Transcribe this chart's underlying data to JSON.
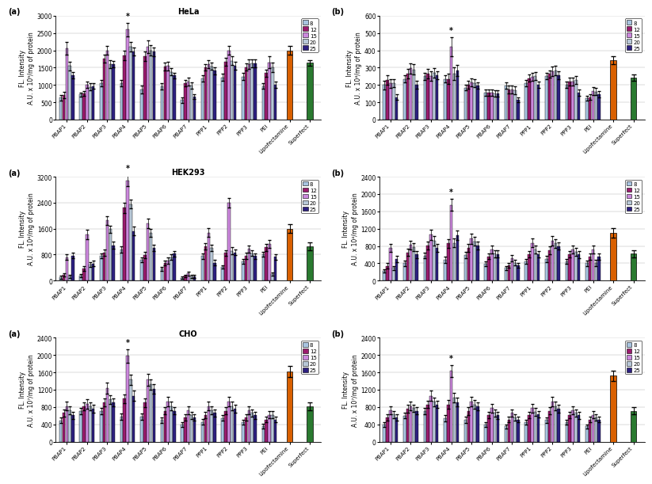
{
  "categories": [
    "PBAP1",
    "PBAP2",
    "PBAP3",
    "PBAP4",
    "PBAP5",
    "PBAP6",
    "PBAP7",
    "PPP1",
    "PPP2",
    "PPP3",
    "PEI",
    "Lipofectamine",
    "Superfect"
  ],
  "np_ratios": [
    8,
    12,
    15,
    20,
    25
  ],
  "bar_colors": [
    "#a8c4e0",
    "#9b1b6e",
    "#cc88dd",
    "#b8c8d8",
    "#2d2080"
  ],
  "lipofectamine_color": "#d96000",
  "superfect_color": "#2a7a30",
  "panels": {
    "HeLa_a": {
      "title": "HeLa",
      "subtitle": "(a)",
      "ylabel": "FL. Intensity\nA.U. x 10⁹/mg of protein",
      "ylim": [
        0,
        3000
      ],
      "yticks": [
        0,
        500,
        1000,
        1500,
        2000,
        2500,
        3000
      ],
      "star_cat": 3,
      "star_ratio": 2,
      "data": [
        [
          630,
          700,
          2060,
          1550,
          1280
        ],
        [
          720,
          760,
          1000,
          940,
          970
        ],
        [
          1050,
          1760,
          2000,
          1600,
          1600
        ],
        [
          1050,
          1850,
          2600,
          2100,
          1960
        ],
        [
          870,
          1830,
          2100,
          2000,
          1960
        ],
        [
          960,
          1530,
          1550,
          1380,
          1270
        ],
        [
          560,
          1060,
          1100,
          980,
          660
        ],
        [
          1180,
          1510,
          1600,
          1540,
          1410
        ],
        [
          1220,
          1670,
          2000,
          1700,
          1560
        ],
        [
          1240,
          1520,
          1600,
          1620,
          1620
        ],
        [
          960,
          1340,
          1650,
          1510,
          1000
        ],
        [
          2000,
          0,
          0,
          0,
          0
        ],
        [
          1640,
          0,
          0,
          0,
          0
        ]
      ],
      "errors": [
        [
          80,
          90,
          180,
          130,
          100
        ],
        [
          60,
          70,
          90,
          100,
          80
        ],
        [
          90,
          120,
          130,
          110,
          90
        ],
        [
          100,
          130,
          200,
          140,
          110
        ],
        [
          110,
          130,
          190,
          140,
          130
        ],
        [
          90,
          110,
          130,
          110,
          90
        ],
        [
          70,
          90,
          120,
          90,
          70
        ],
        [
          90,
          100,
          120,
          110,
          100
        ],
        [
          100,
          120,
          130,
          130,
          110
        ],
        [
          100,
          110,
          130,
          120,
          110
        ],
        [
          80,
          100,
          170,
          130,
          90
        ],
        [
          120,
          0,
          0,
          0,
          0
        ],
        [
          80,
          0,
          0,
          0,
          0
        ]
      ]
    },
    "HeLa_b": {
      "title": "",
      "subtitle": "(b)",
      "ylabel": "FL. Intensity\nA.U. x 10⁴/mg of protein",
      "ylim": [
        0,
        600
      ],
      "yticks": [
        0,
        100,
        200,
        300,
        400,
        500,
        600
      ],
      "star_cat": 3,
      "star_ratio": 2,
      "data": [
        [
          200,
          230,
          210,
          210,
          130
        ],
        [
          235,
          265,
          295,
          290,
          200
        ],
        [
          250,
          265,
          250,
          270,
          255
        ],
        [
          235,
          235,
          420,
          265,
          285
        ],
        [
          185,
          200,
          215,
          210,
          195
        ],
        [
          155,
          155,
          155,
          150,
          150
        ],
        [
          195,
          175,
          175,
          170,
          115
        ],
        [
          210,
          240,
          245,
          250,
          200
        ],
        [
          252,
          263,
          280,
          285,
          255
        ],
        [
          200,
          220,
          220,
          228,
          155
        ],
        [
          125,
          130,
          165,
          162,
          148
        ],
        [
          342,
          0,
          0,
          0,
          0
        ],
        [
          243,
          0,
          0,
          0,
          0
        ]
      ],
      "errors": [
        [
          25,
          28,
          25,
          22,
          18
        ],
        [
          22,
          28,
          30,
          28,
          22
        ],
        [
          22,
          27,
          28,
          28,
          22
        ],
        [
          22,
          28,
          55,
          35,
          32
        ],
        [
          18,
          22,
          23,
          22,
          18
        ],
        [
          18,
          18,
          18,
          18,
          18
        ],
        [
          18,
          22,
          22,
          22,
          14
        ],
        [
          18,
          22,
          23,
          23,
          18
        ],
        [
          18,
          22,
          28,
          28,
          22
        ],
        [
          18,
          22,
          23,
          23,
          18
        ],
        [
          14,
          18,
          22,
          22,
          18
        ],
        [
          22,
          0,
          0,
          0,
          0
        ],
        [
          18,
          0,
          0,
          0,
          0
        ]
      ]
    },
    "HEK293_a": {
      "title": "HEK293",
      "subtitle": "(a)",
      "ylabel": "FL. Intensity\nA.U. x 10⁴/mg of protein",
      "ylim": [
        0,
        3200
      ],
      "yticks": [
        0,
        800,
        1600,
        2400,
        3200
      ],
      "star_cat": 3,
      "star_ratio": 2,
      "data": [
        [
          100,
          180,
          720,
          130,
          770
        ],
        [
          150,
          370,
          1420,
          490,
          520
        ],
        [
          760,
          850,
          1850,
          1580,
          1090
        ],
        [
          960,
          2240,
          3080,
          2360,
          1530
        ],
        [
          640,
          790,
          1760,
          1470,
          1010
        ],
        [
          360,
          545,
          620,
          720,
          830
        ],
        [
          90,
          140,
          220,
          120,
          130
        ],
        [
          750,
          1060,
          1480,
          1000,
          550
        ],
        [
          420,
          850,
          2400,
          920,
          870
        ],
        [
          600,
          760,
          970,
          840,
          750
        ],
        [
          810,
          1020,
          1120,
          200,
          730
        ],
        [
          1600,
          0,
          0,
          0,
          0
        ],
        [
          1050,
          0,
          0,
          0,
          0
        ]
      ],
      "errors": [
        [
          40,
          50,
          90,
          50,
          90
        ],
        [
          50,
          70,
          140,
          80,
          85
        ],
        [
          80,
          100,
          140,
          115,
          100
        ],
        [
          100,
          150,
          160,
          145,
          130
        ],
        [
          80,
          100,
          140,
          115,
          100
        ],
        [
          55,
          75,
          90,
          90,
          90
        ],
        [
          35,
          45,
          60,
          45,
          40
        ],
        [
          80,
          100,
          125,
          100,
          80
        ],
        [
          60,
          95,
          145,
          100,
          95
        ],
        [
          70,
          90,
          105,
          90,
          80
        ],
        [
          80,
          100,
          120,
          55,
          80
        ],
        [
          130,
          0,
          0,
          0,
          0
        ],
        [
          120,
          0,
          0,
          0,
          0
        ]
      ]
    },
    "HEK293_b": {
      "title": "",
      "subtitle": "(b)",
      "ylabel": "FL. Intensity\nA.U. x 10⁴/mg of protein",
      "ylim": [
        0,
        2400
      ],
      "yticks": [
        0,
        400,
        800,
        1200,
        1600,
        2000,
        2400
      ],
      "star_cat": 3,
      "star_ratio": 2,
      "data": [
        [
          220,
          340,
          750,
          290,
          500
        ],
        [
          400,
          650,
          820,
          770,
          600
        ],
        [
          580,
          810,
          1060,
          920,
          760
        ],
        [
          480,
          860,
          1750,
          870,
          1050
        ],
        [
          590,
          760,
          970,
          910,
          810
        ],
        [
          390,
          560,
          720,
          620,
          610
        ],
        [
          290,
          350,
          510,
          410,
          355
        ],
        [
          445,
          610,
          870,
          710,
          610
        ],
        [
          500,
          700,
          920,
          860,
          800
        ],
        [
          445,
          610,
          720,
          660,
          600
        ],
        [
          400,
          560,
          720,
          410,
          560
        ],
        [
          1100,
          0,
          0,
          0,
          0
        ],
        [
          620,
          0,
          0,
          0,
          0
        ]
      ],
      "errors": [
        [
          38,
          58,
          95,
          50,
          70
        ],
        [
          58,
          78,
          105,
          92,
          80
        ],
        [
          68,
          88,
          115,
          102,
          90
        ],
        [
          78,
          98,
          135,
          102,
          112
        ],
        [
          78,
          88,
          115,
          102,
          90
        ],
        [
          58,
          68,
          95,
          82,
          82
        ],
        [
          48,
          58,
          75,
          62,
          55
        ],
        [
          58,
          78,
          105,
          92,
          80
        ],
        [
          68,
          88,
          115,
          102,
          90
        ],
        [
          58,
          78,
          95,
          88,
          80
        ],
        [
          58,
          73,
          95,
          70,
          75
        ],
        [
          105,
          0,
          0,
          0,
          0
        ],
        [
          80,
          0,
          0,
          0,
          0
        ]
      ]
    },
    "CHO_a": {
      "title": "CHO",
      "subtitle": "(a)",
      "ylabel": "FL. Intensity\nA.U. x 10⁷/mg of protein",
      "ylim": [
        0,
        2400
      ],
      "yticks": [
        0,
        400,
        800,
        1200,
        1600,
        2000,
        2400
      ],
      "star_cat": 3,
      "star_ratio": 2,
      "data": [
        [
          490,
          660,
          820,
          720,
          610
        ],
        [
          700,
          810,
          870,
          820,
          760
        ],
        [
          700,
          910,
          1230,
          970,
          910
        ],
        [
          580,
          990,
          1980,
          1430,
          1060
        ],
        [
          580,
          900,
          1430,
          1320,
          1220
        ],
        [
          500,
          710,
          920,
          820,
          710
        ],
        [
          395,
          555,
          720,
          610,
          560
        ],
        [
          455,
          610,
          820,
          720,
          660
        ],
        [
          540,
          710,
          920,
          820,
          760
        ],
        [
          450,
          560,
          720,
          660,
          610
        ],
        [
          350,
          510,
          620,
          620,
          510
        ],
        [
          1620,
          0,
          0,
          0,
          0
        ],
        [
          810,
          0,
          0,
          0,
          0
        ]
      ],
      "errors": [
        [
          60,
          80,
          105,
          90,
          80
        ],
        [
          70,
          88,
          105,
          92,
          85
        ],
        [
          74,
          94,
          125,
          102,
          94
        ],
        [
          78,
          108,
          155,
          122,
          112
        ],
        [
          74,
          98,
          135,
          122,
          112
        ],
        [
          64,
          84,
          105,
          96,
          84
        ],
        [
          54,
          70,
          92,
          82,
          70
        ],
        [
          58,
          78,
          105,
          90,
          80
        ],
        [
          64,
          84,
          108,
          96,
          84
        ],
        [
          58,
          74,
          92,
          86,
          80
        ],
        [
          54,
          70,
          88,
          82,
          70
        ],
        [
          135,
          0,
          0,
          0,
          0
        ],
        [
          92,
          0,
          0,
          0,
          0
        ]
      ]
    },
    "CHO_b": {
      "title": "",
      "subtitle": "(b)",
      "ylabel": "FL. Intensity\nA.U. x 10⁷/mg of protein",
      "ylim": [
        0,
        2400
      ],
      "yticks": [
        0,
        400,
        800,
        1200,
        1600,
        2000,
        2400
      ],
      "star_cat": 3,
      "star_ratio": 2,
      "data": [
        [
          400,
          560,
          720,
          630,
          560
        ],
        [
          600,
          760,
          820,
          770,
          710
        ],
        [
          700,
          860,
          1060,
          920,
          860
        ],
        [
          540,
          860,
          1630,
          1020,
          910
        ],
        [
          500,
          710,
          920,
          860,
          810
        ],
        [
          395,
          610,
          770,
          660,
          610
        ],
        [
          348,
          510,
          660,
          560,
          510
        ],
        [
          450,
          610,
          770,
          690,
          630
        ],
        [
          500,
          710,
          920,
          820,
          760
        ],
        [
          450,
          610,
          720,
          660,
          610
        ],
        [
          348,
          510,
          620,
          560,
          510
        ],
        [
          1520,
          0,
          0,
          0,
          0
        ],
        [
          710,
          0,
          0,
          0,
          0
        ]
      ],
      "errors": [
        [
          54,
          70,
          92,
          82,
          70
        ],
        [
          68,
          84,
          102,
          90,
          84
        ],
        [
          74,
          88,
          112,
          100,
          90
        ],
        [
          74,
          98,
          135,
          112,
          100
        ],
        [
          68,
          88,
          112,
          100,
          94
        ],
        [
          58,
          78,
          98,
          86,
          80
        ],
        [
          48,
          64,
          86,
          76,
          64
        ],
        [
          58,
          78,
          98,
          88,
          80
        ],
        [
          64,
          84,
          108,
          96,
          84
        ],
        [
          58,
          78,
          92,
          86,
          80
        ],
        [
          54,
          68,
          86,
          78,
          70
        ],
        [
          122,
          0,
          0,
          0,
          0
        ],
        [
          86,
          0,
          0,
          0,
          0
        ]
      ]
    }
  }
}
